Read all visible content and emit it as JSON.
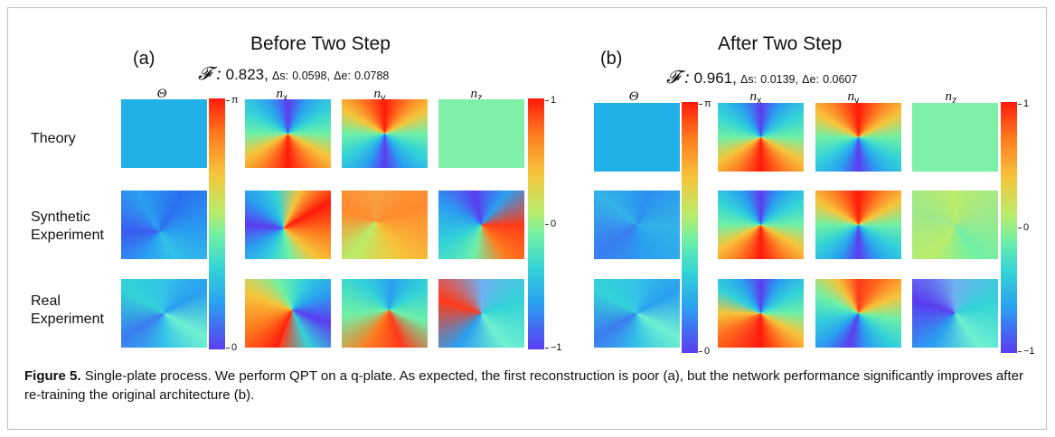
{
  "figure": {
    "left": {
      "label": "(a)",
      "title": "Before Two Step",
      "fid_symbol": "𝓕 :",
      "fid_value": "0.823,",
      "ds_label": "Δs:",
      "ds_value": "0.0598,",
      "de_label": "Δe:",
      "de_value": "0.0788"
    },
    "right": {
      "label": "(b)",
      "title": "After Two Step",
      "fid_symbol": "𝓕 :",
      "fid_value": "0.961,",
      "ds_label": "Δs:",
      "ds_value": "0.0139,",
      "de_label": "Δe:",
      "de_value": "0.0607"
    },
    "col_headers": [
      "Θ",
      "nx",
      "ny",
      "nz"
    ],
    "row_labels": [
      "Theory",
      "Synthetic Experiment",
      "Real Experiment"
    ],
    "row_label_lines": [
      [
        "Theory"
      ],
      [
        "Synthetic",
        "Experiment"
      ],
      [
        "Real",
        "Experiment"
      ]
    ],
    "theta_bar": {
      "top": "π",
      "bottom": "0"
    },
    "n_bar": {
      "top": "1",
      "mid": "0",
      "bottom": "−1"
    }
  },
  "caption": {
    "number": "Figure 5.",
    "text": "Single-plate process. We perform QPT on a q-plate. As expected, the first reconstruction is poor (a), but the network performance significantly improves after re-training the original architecture (b)."
  },
  "colors": {
    "theta_flat": "#22b0e8",
    "nz_flat": "#7ef0a8"
  }
}
